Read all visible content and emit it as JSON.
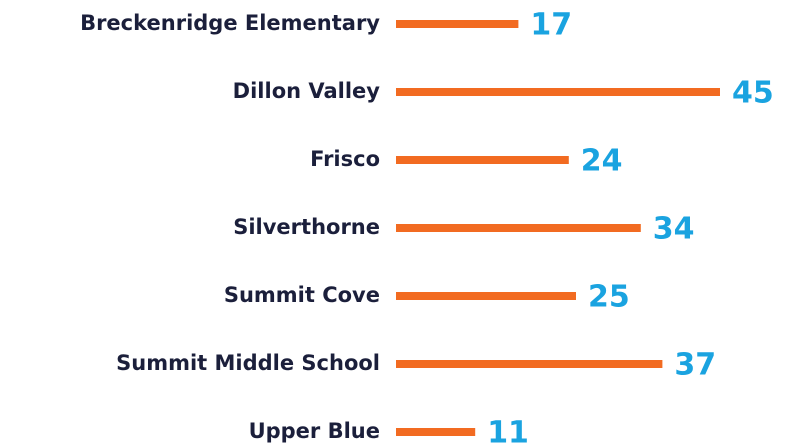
{
  "chart_data": {
    "type": "bar",
    "orientation": "horizontal",
    "categories": [
      "Breckenridge Elementary",
      "Dillon Valley",
      "Frisco",
      "Silverthorne",
      "Summit Cove",
      "Summit Middle School",
      "Upper Blue"
    ],
    "values": [
      17,
      45,
      24,
      34,
      25,
      37,
      11
    ],
    "color": "#f26b21",
    "label_color": "#1aa3e0"
  }
}
